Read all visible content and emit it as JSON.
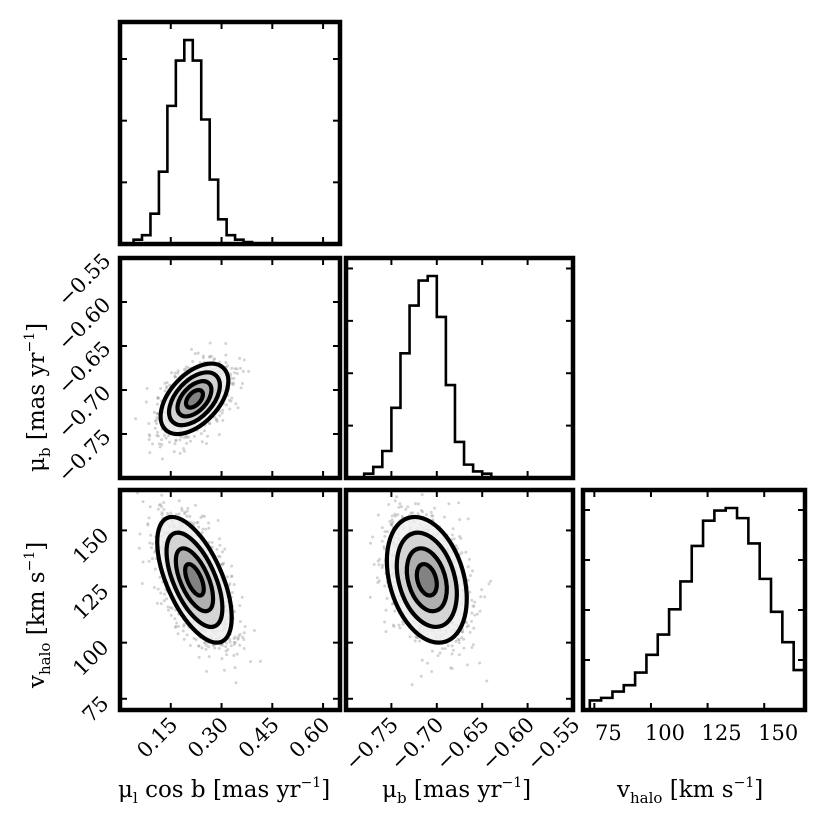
{
  "figure": {
    "colors": {
      "ink": "#000000",
      "scatter": "#9e9e9e",
      "density": [
        "#f0f0f0",
        "#d0d0d0",
        "#a8a8a8",
        "#7a7a7a",
        "#4a4a4a"
      ]
    }
  },
  "chart_data": [
    {
      "type": "histogram",
      "panel": "pm-l-marginal",
      "x_param": "mu_l_cosb",
      "xlim": [
        0.0,
        0.65
      ],
      "bins_edges": [
        0.04,
        0.065,
        0.09,
        0.115,
        0.14,
        0.165,
        0.19,
        0.215,
        0.24,
        0.265,
        0.29,
        0.315,
        0.34,
        0.365,
        0.39
      ],
      "counts": [
        2,
        6,
        25,
        62,
        120,
        160,
        178,
        160,
        108,
        55,
        20,
        6,
        2,
        0
      ]
    },
    {
      "type": "scatter",
      "panel": "pm-l-vs-pm-b",
      "x_param": "mu_l_cosb",
      "y_param": "mu_b",
      "xlim": [
        0.0,
        0.65
      ],
      "ylim": [
        -0.8,
        -0.55
      ],
      "center": [
        0.22,
        -0.71
      ],
      "sigma": [
        0.05,
        0.02
      ],
      "correlation": 0.5,
      "contour_levels_sigma": [
        0.5,
        1.0,
        1.5,
        2.0
      ]
    },
    {
      "type": "histogram",
      "panel": "pm-b-marginal",
      "x_param": "mu_b",
      "xlim": [
        -0.8,
        -0.55
      ],
      "bins_edges": [
        -0.78,
        -0.77,
        -0.76,
        -0.75,
        -0.74,
        -0.73,
        -0.72,
        -0.71,
        -0.7,
        -0.69,
        -0.68,
        -0.67,
        -0.66,
        -0.65,
        -0.64
      ],
      "counts": [
        2,
        8,
        22,
        60,
        108,
        150,
        172,
        176,
        140,
        80,
        30,
        10,
        4,
        2
      ]
    },
    {
      "type": "scatter",
      "panel": "pm-l-vs-vhalo",
      "x_param": "mu_l_cosb",
      "y_param": "v_halo",
      "xlim": [
        0.0,
        0.65
      ],
      "ylim": [
        70,
        168
      ],
      "center": [
        0.22,
        128
      ],
      "sigma": [
        0.055,
        14
      ],
      "correlation": -0.6,
      "contour_levels_sigma": [
        0.5,
        1.0,
        1.5,
        2.0
      ]
    },
    {
      "type": "scatter",
      "panel": "pm-b-vs-vhalo",
      "x_param": "mu_b",
      "y_param": "v_halo",
      "xlim": [
        -0.8,
        -0.55
      ],
      "ylim": [
        70,
        168
      ],
      "center": [
        -0.711,
        128
      ],
      "sigma": [
        0.022,
        14
      ],
      "correlation": -0.3,
      "contour_levels_sigma": [
        0.5,
        1.0,
        1.5,
        2.0
      ]
    },
    {
      "type": "histogram",
      "panel": "vhalo-marginal",
      "x_param": "v_halo",
      "xlim": [
        70,
        168
      ],
      "bins_edges": [
        73,
        78,
        83,
        88,
        93,
        98,
        103,
        108,
        113,
        118,
        123,
        128,
        133,
        138,
        143,
        148,
        153,
        158,
        163,
        168
      ],
      "counts": [
        6,
        8,
        13,
        18,
        28,
        42,
        58,
        78,
        100,
        128,
        148,
        156,
        158,
        150,
        130,
        102,
        76,
        52,
        30
      ]
    }
  ],
  "axes": {
    "mu_l_ticks": [
      "0.15",
      "0.30",
      "0.45",
      "0.60"
    ],
    "mu_l_tick_values": [
      0.15,
      0.3,
      0.45,
      0.6
    ],
    "mu_b_ticks": [
      "−0.75",
      "−0.70",
      "−0.65",
      "−0.60",
      "−0.55"
    ],
    "mu_b_tick_values": [
      -0.75,
      -0.7,
      -0.65,
      -0.6,
      -0.55
    ],
    "vhalo_ticks": [
      "75",
      "100",
      "125",
      "150"
    ],
    "vhalo_tick_values": [
      75,
      100,
      125,
      150
    ],
    "labels": {
      "mu_l": {
        "sym": "μ",
        "sub": "l",
        "rest": " cos b [mas yr",
        "sup": "−1",
        "close": "]"
      },
      "mu_b": {
        "sym": "μ",
        "sub": "b",
        "rest": " [mas yr",
        "sup": "−1",
        "close": "]"
      },
      "vhalo": {
        "sym": "v",
        "sub": "halo",
        "rest": " [km s",
        "sup": "−1",
        "close": "]"
      }
    }
  }
}
